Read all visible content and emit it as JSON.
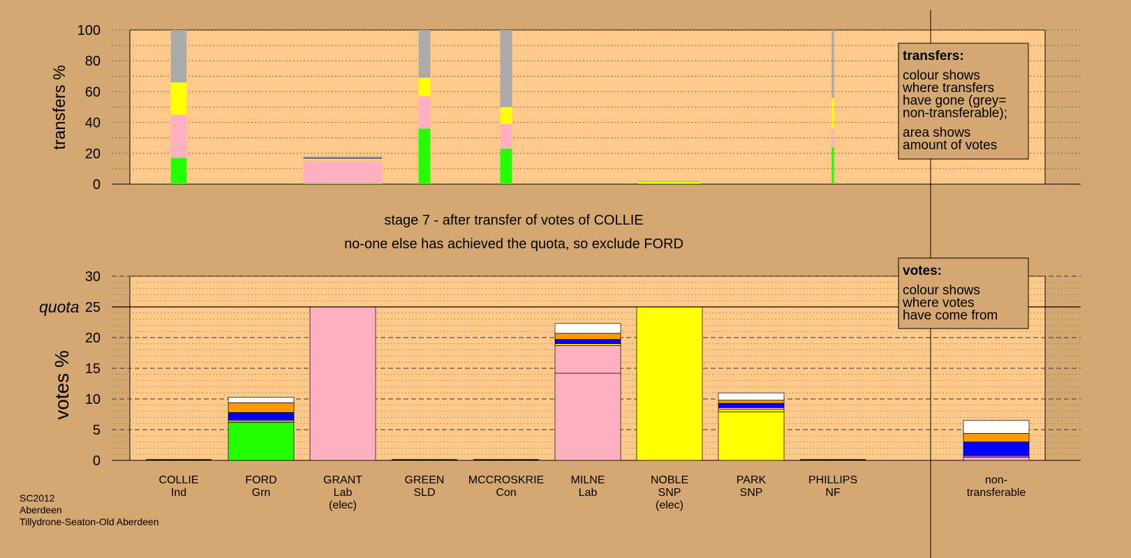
{
  "stage_title": "stage 7 - after transfer of votes of COLLIE",
  "stage_note": "no-one else has achieved the quota, so exclude FORD",
  "footer": {
    "line1": "SC2012",
    "line2": "Aberdeen",
    "line3": "Tillydrone-Seaton-Old Aberdeen"
  },
  "transfers_legend": {
    "title": "transfers:",
    "lines": [
      "colour shows",
      "where transfers",
      "have gone (grey=",
      "non-transferable);"
    ],
    "lines2": [
      "area shows",
      "amount of votes"
    ]
  },
  "votes_legend": {
    "title": "votes:",
    "lines": [
      "colour shows",
      "where votes",
      "have come from"
    ]
  },
  "colors": {
    "background": "#D4A870",
    "plot": "#FFC98A",
    "Grn": "#22FF00",
    "Lab": "#FFB0C0",
    "SNP": "#FFFF00",
    "Con": "#0000FF",
    "LD": "#FF9900",
    "Ind": "#FFFFFF",
    "nontrans": "#AAAAAA"
  },
  "chart_data": [
    {
      "type": "bar",
      "stacked": true,
      "ylabel": "transfers %",
      "ylim": [
        0,
        100
      ],
      "yticks": [
        0,
        20,
        40,
        60,
        80,
        100
      ],
      "grid": true,
      "bars": [
        {
          "label": "COLLIE",
          "width": 0.2,
          "segments": [
            {
              "color": "#22FF00",
              "value": 17
            },
            {
              "color": "#FFB0C0",
              "value": 28
            },
            {
              "color": "#FFFF00",
              "value": 21
            },
            {
              "color": "#AAAAAA",
              "value": 34
            }
          ]
        },
        {
          "label": "GRANT",
          "width": 1.0,
          "segments": [
            {
              "color": "#22FF00",
              "value": 0.5
            },
            {
              "color": "#FFB0C0",
              "value": 15
            },
            {
              "color": "#FFFF00",
              "value": 1
            },
            {
              "color": "#0000FF",
              "value": 0.5
            },
            {
              "color": "#FF9900",
              "value": 0.5
            },
            {
              "color": "#AAAAAA",
              "value": 0.5
            }
          ]
        },
        {
          "label": "GREEN",
          "width": 0.15,
          "segments": [
            {
              "color": "#22FF00",
              "value": 36
            },
            {
              "color": "#FFB0C0",
              "value": 21
            },
            {
              "color": "#FFFF00",
              "value": 12
            },
            {
              "color": "#AAAAAA",
              "value": 31
            }
          ]
        },
        {
          "label": "MCCROSKRIE",
          "width": 0.15,
          "segments": [
            {
              "color": "#22FF00",
              "value": 23
            },
            {
              "color": "#FFB0C0",
              "value": 16
            },
            {
              "color": "#FFFF00",
              "value": 11
            },
            {
              "color": "#AAAAAA",
              "value": 50
            }
          ]
        },
        {
          "label": "NOBLE",
          "width": 0.8,
          "segments": [
            {
              "color": "#22FF00",
              "value": 0.5
            },
            {
              "color": "#FFFF00",
              "value": 1
            },
            {
              "color": "#AAAAAA",
              "value": 0.5
            }
          ]
        },
        {
          "label": "PHILLIPS",
          "width": 0.03,
          "segments": [
            {
              "color": "#22FF00",
              "value": 24
            },
            {
              "color": "#FFB0C0",
              "value": 12
            },
            {
              "color": "#FFFF00",
              "value": 20
            },
            {
              "color": "#AAAAAA",
              "value": 44
            }
          ]
        }
      ]
    },
    {
      "type": "bar",
      "stacked": true,
      "ylabel": "votes %",
      "ylim": [
        0,
        30
      ],
      "yticks": [
        0,
        5,
        10,
        15,
        20,
        25,
        30
      ],
      "quota": 25,
      "quota_label": "quota",
      "grid": true,
      "categories": [
        "COLLIE",
        "FORD",
        "GRANT",
        "GREEN",
        "MCCROSKRIE",
        "MILNE",
        "NOBLE",
        "PARK",
        "PHILLIPS",
        "non-transferable"
      ],
      "labels": [
        [
          "COLLIE",
          "Ind",
          ""
        ],
        [
          "FORD",
          "Grn",
          ""
        ],
        [
          "GRANT",
          "Lab",
          "(elec)"
        ],
        [
          "GREEN",
          "SLD",
          ""
        ],
        [
          "MCCROSKRIE",
          "Con",
          ""
        ],
        [
          "MILNE",
          "Lab",
          ""
        ],
        [
          "NOBLE",
          "SNP",
          "(elec)"
        ],
        [
          "PARK",
          "SNP",
          ""
        ],
        [
          "PHILLIPS",
          "NF",
          ""
        ],
        [
          "non-",
          "transferable",
          ""
        ]
      ],
      "bars": [
        [],
        [
          {
            "color": "#22FF00",
            "value": 6.2
          },
          {
            "color": "#FFFF00",
            "value": 0.2
          },
          {
            "color": "#FFB0C0",
            "value": 0.2
          },
          {
            "color": "#0000FF",
            "value": 1.2
          },
          {
            "color": "#FF9900",
            "value": 1.6
          },
          {
            "color": "#FFFFFF",
            "value": 0.9
          }
        ],
        [
          {
            "color": "#FFB0C0",
            "value": 25
          }
        ],
        [],
        [],
        [
          {
            "color": "#FFB0C0",
            "value": 14.2
          },
          {
            "color": "#FFB0C0",
            "value": 4.5
          },
          {
            "color": "#FFFF00",
            "value": 0.3
          },
          {
            "color": "#0000FF",
            "value": 0.7
          },
          {
            "color": "#FF9900",
            "value": 1
          },
          {
            "color": "#FFFFFF",
            "value": 1.6
          }
        ],
        [
          {
            "color": "#FFFF00",
            "value": 25
          }
        ],
        [
          {
            "color": "#FFFF00",
            "value": 7.9
          },
          {
            "color": "#FFFF00",
            "value": 0.4
          },
          {
            "color": "#FFB0C0",
            "value": 0.3
          },
          {
            "color": "#0000FF",
            "value": 0.7
          },
          {
            "color": "#FF9900",
            "value": 0.5
          },
          {
            "color": "#FFFFFF",
            "value": 1.2
          }
        ],
        [],
        [
          {
            "color": "#FFB0C0",
            "value": 0.5
          },
          {
            "color": "#AA66CC",
            "value": 0.3
          },
          {
            "color": "#0000FF",
            "value": 2.2
          },
          {
            "color": "#FF9900",
            "value": 1.4
          },
          {
            "color": "#FFFFFF",
            "value": 2.1
          }
        ]
      ]
    }
  ]
}
